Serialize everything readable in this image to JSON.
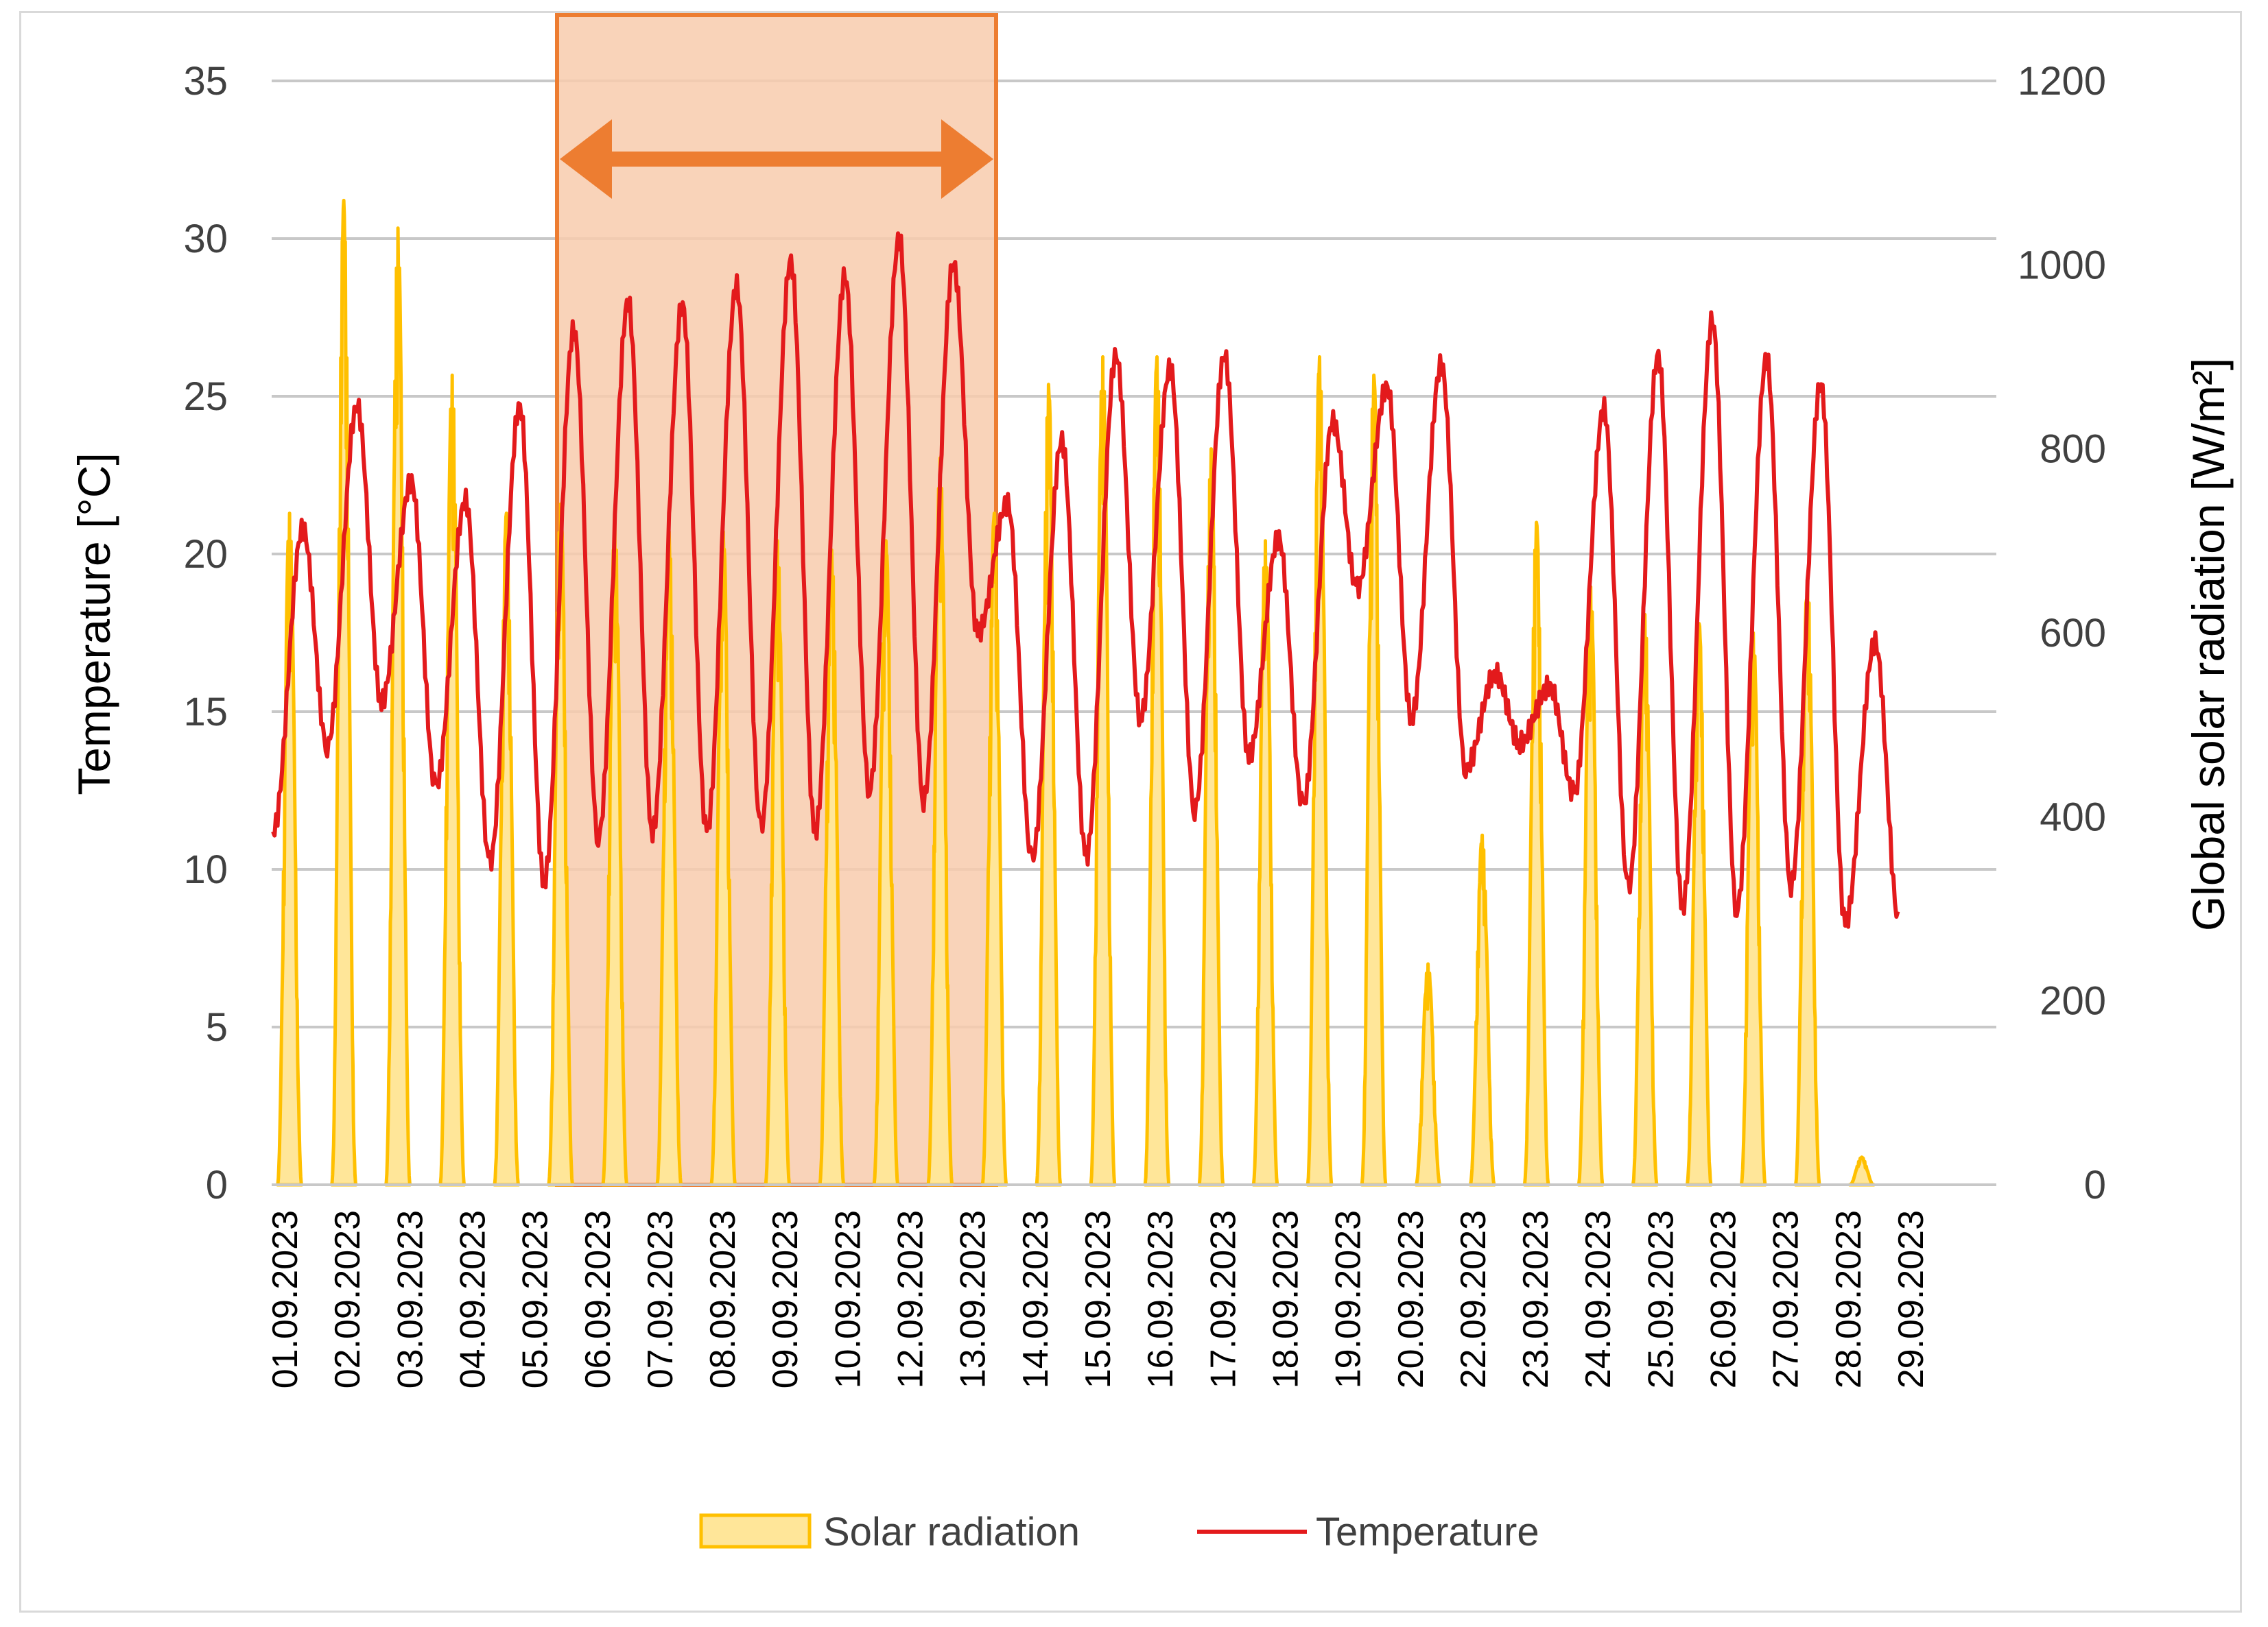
{
  "chart_data": {
    "type": "area+line",
    "y_left_label": "Temperature [°C]",
    "y_right_label": "Global solar radiation [W/m²]",
    "y_left_range": [
      0,
      35
    ],
    "y_right_range": [
      0,
      1200
    ],
    "y_left_ticks": [
      "0",
      "5",
      "10",
      "15",
      "20",
      "25",
      "30",
      "35"
    ],
    "y_right_ticks": [
      "0",
      "200",
      "400",
      "600",
      "800",
      "1000",
      "1200"
    ],
    "grid": true,
    "legend_position": "bottom",
    "x_tick_labels": [
      "01.09.2023",
      "02.09.2023",
      "03.09.2023",
      "04.09.2023",
      "05.09.2023",
      "06.09.2023",
      "07.09.2023",
      "08.09.2023",
      "09.09.2023",
      "10.09.2023",
      "12.09.2023",
      "13.09.2023",
      "14.09.2023",
      "15.09.2023",
      "16.09.2023",
      "17.09.2023",
      "18.09.2023",
      "19.09.2023",
      "20.09.2023",
      "22.09.2023",
      "23.09.2023",
      "24.09.2023",
      "25.09.2023",
      "26.09.2023",
      "27.09.2023",
      "28.09.2023",
      "29.09.2023"
    ],
    "days": 30,
    "series": [
      {
        "name": "Solar radiation",
        "axis": "right",
        "style": "area",
        "color": "#ffc000",
        "fill": "#ffe699",
        "daily_peak_wm2": [
          730,
          1070,
          1040,
          880,
          730,
          740,
          720,
          710,
          710,
          700,
          690,
          700,
          790,
          730,
          870,
          900,
          900,
          800,
          700,
          900,
          880,
          240,
          380,
          720,
          650,
          620,
          610,
          600,
          660,
          30
        ]
      },
      {
        "name": "Temperature",
        "axis": "left",
        "style": "line",
        "color": "#e31a1c",
        "daily_max_c": [
          20.8,
          24.7,
          22.3,
          21.7,
          24.7,
          27.1,
          28.0,
          27.9,
          28.5,
          29.3,
          28.8,
          30.0,
          29.2,
          21.6,
          23.6,
          26.3,
          25.9,
          26.3,
          20.5,
          24.2,
          25.3,
          26.0,
          16.2,
          15.8,
          24.6,
          26.3,
          27.4,
          26.2,
          25.4,
          17.2
        ],
        "daily_min_c": [
          11.2,
          13.9,
          15.3,
          12.6,
          10.2,
          9.6,
          11.0,
          11.2,
          11.2,
          11.3,
          11.2,
          12.5,
          12.2,
          17.5,
          10.3,
          10.4,
          14.8,
          11.9,
          13.6,
          12.0,
          18.9,
          14.8,
          13.2,
          14.0,
          12.4,
          9.4,
          8.8,
          8.7,
          9.5,
          8.3
        ]
      }
    ],
    "highlight": {
      "from_day_index": 5,
      "to_day_index": 12,
      "fill": "#f8cbad",
      "stroke": "#ed7d31",
      "arrow": "double-headed"
    },
    "legend": {
      "solar_label": "Solar radiation",
      "temperature_label": "Temperature"
    }
  }
}
